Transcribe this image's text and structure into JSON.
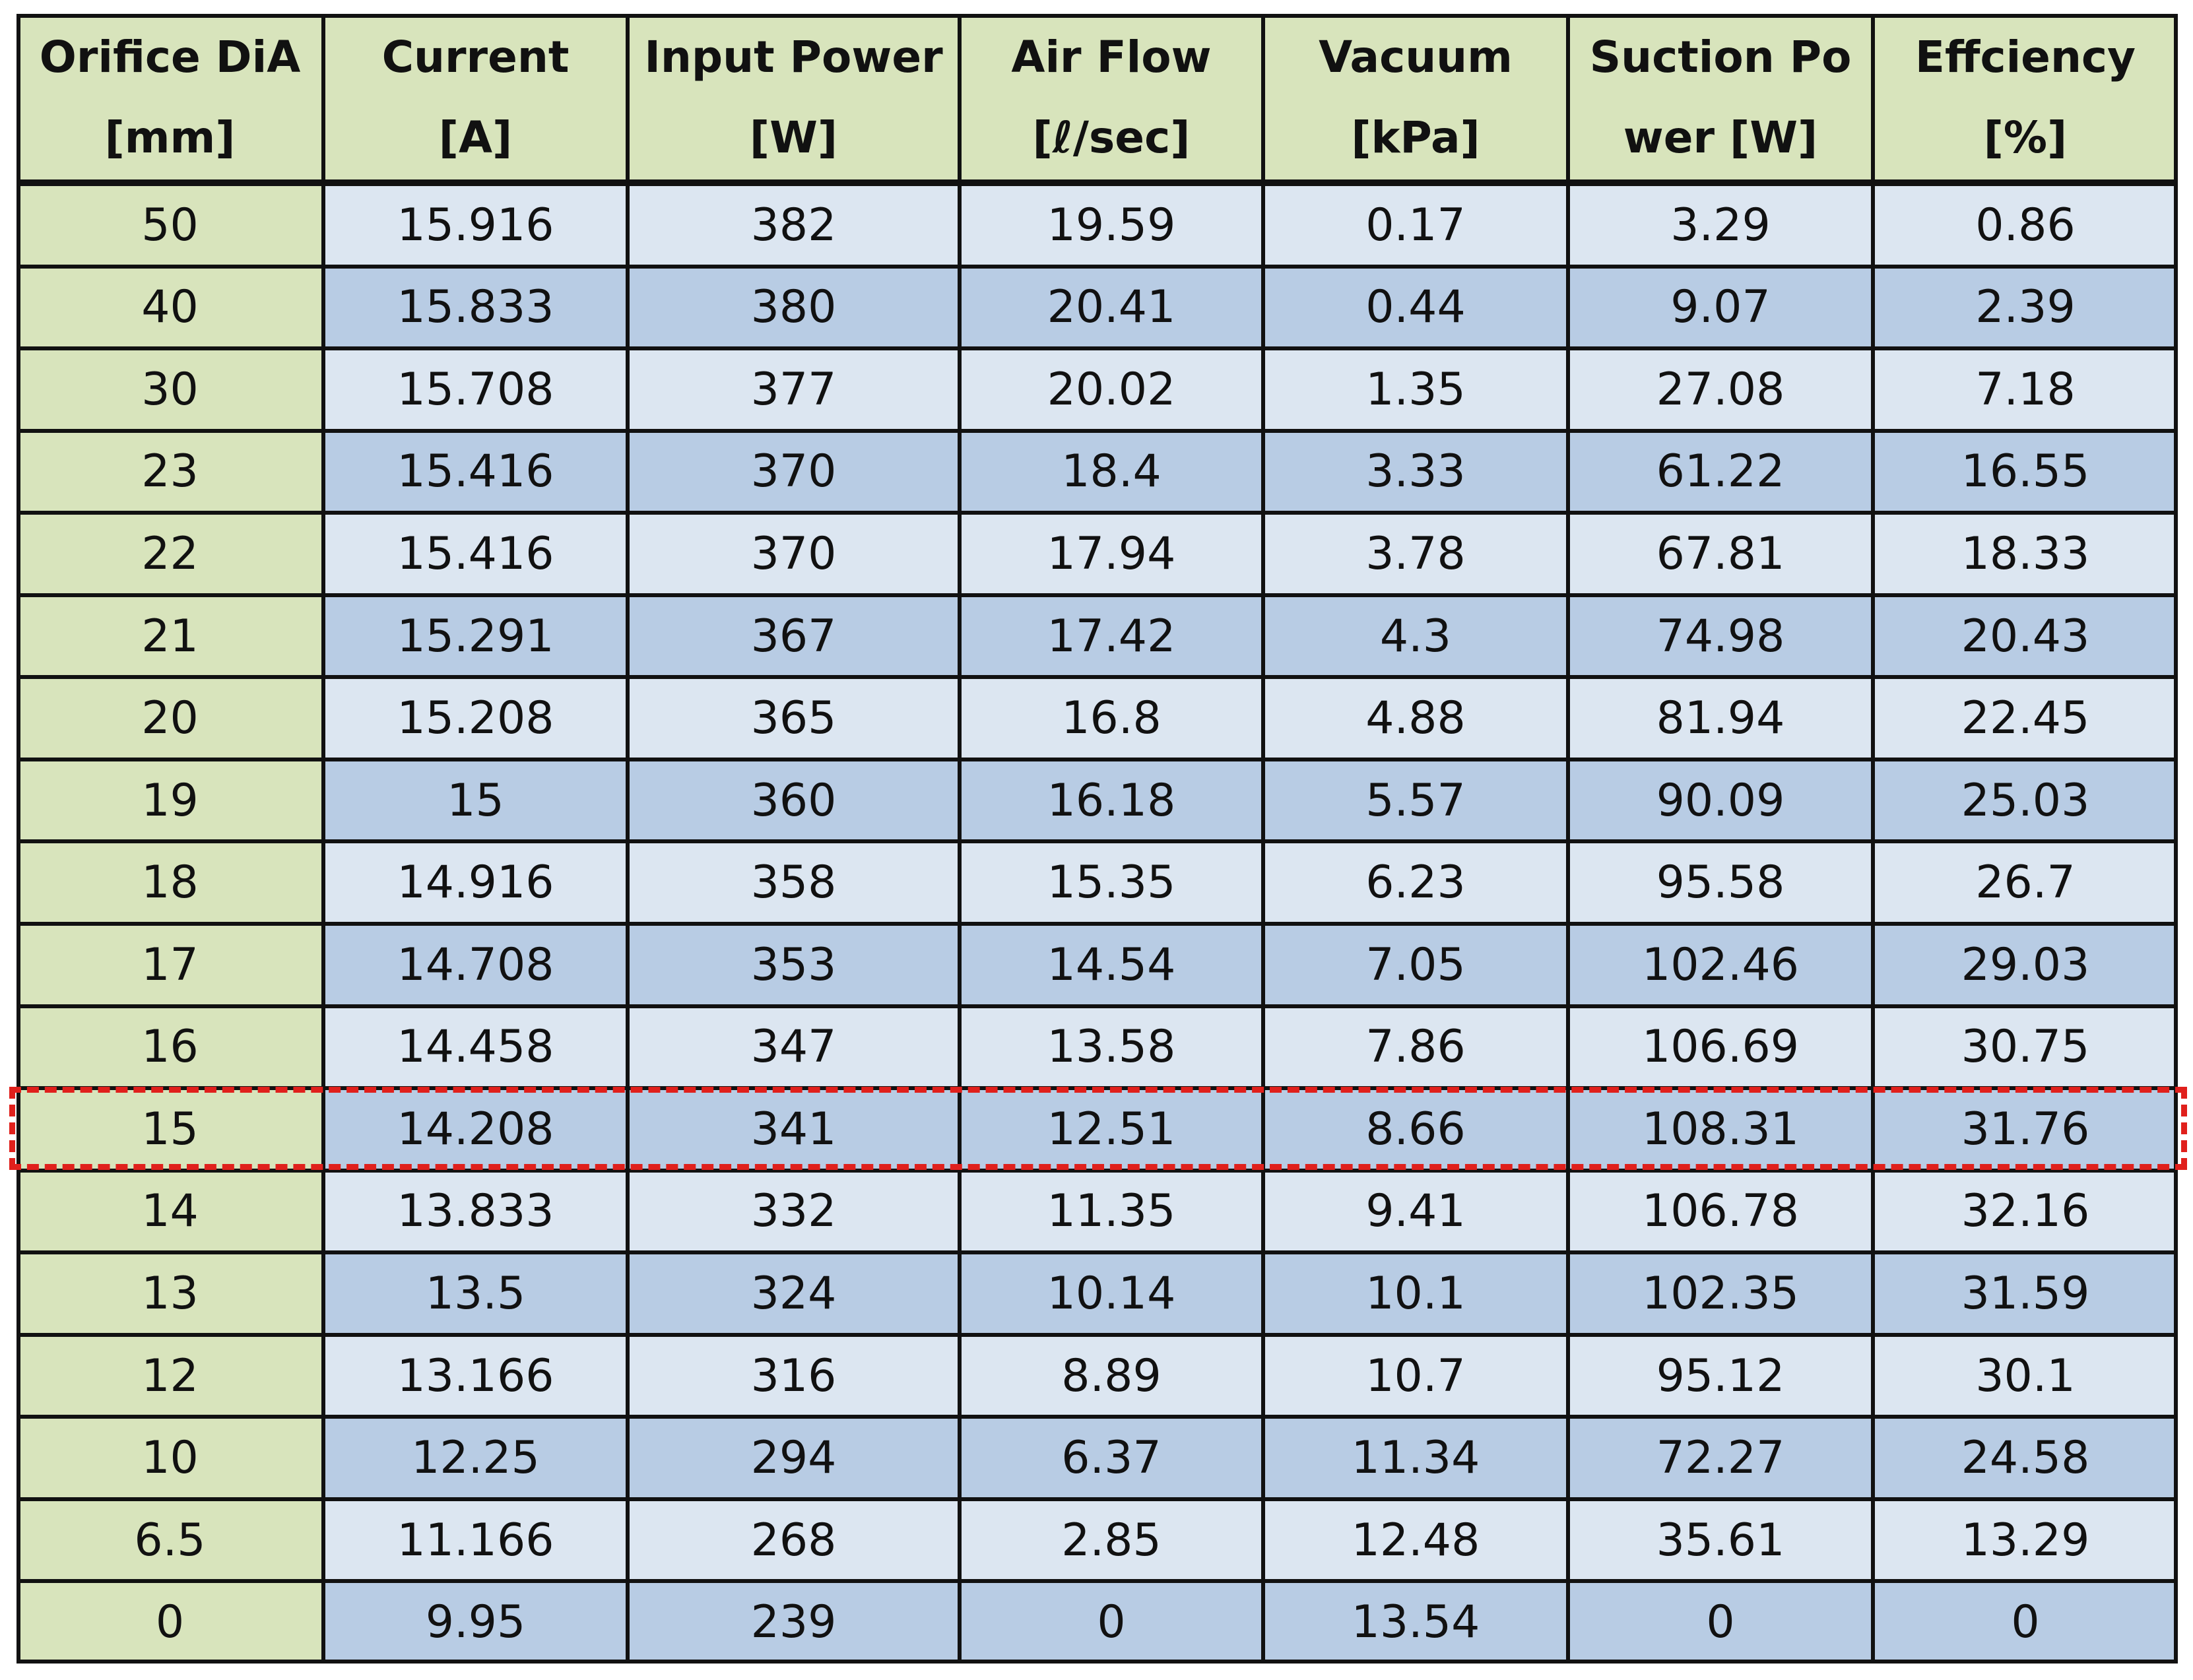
{
  "header": {
    "columns": [
      [
        "Orifice DiA",
        "[mm]"
      ],
      [
        "Current",
        "[A]"
      ],
      [
        "Input Power",
        "[W]"
      ],
      [
        "Air Flow",
        "[ℓ/sec]"
      ],
      [
        "Vacuum",
        "[kPa]"
      ],
      [
        "Suction Po",
        "wer [W]"
      ],
      [
        "Effciency",
        "[%]"
      ]
    ]
  },
  "table": {
    "rows": [
      [
        "50",
        "15.916",
        "382",
        "19.59",
        "0.17",
        "3.29",
        "0.86"
      ],
      [
        "40",
        "15.833",
        "380",
        "20.41",
        "0.44",
        "9.07",
        "2.39"
      ],
      [
        "30",
        "15.708",
        "377",
        "20.02",
        "1.35",
        "27.08",
        "7.18"
      ],
      [
        "23",
        "15.416",
        "370",
        "18.4",
        "3.33",
        "61.22",
        "16.55"
      ],
      [
        "22",
        "15.416",
        "370",
        "17.94",
        "3.78",
        "67.81",
        "18.33"
      ],
      [
        "21",
        "15.291",
        "367",
        "17.42",
        "4.3",
        "74.98",
        "20.43"
      ],
      [
        "20",
        "15.208",
        "365",
        "16.8",
        "4.88",
        "81.94",
        "22.45"
      ],
      [
        "19",
        "15",
        "360",
        "16.18",
        "5.57",
        "90.09",
        "25.03"
      ],
      [
        "18",
        "14.916",
        "358",
        "15.35",
        "6.23",
        "95.58",
        "26.7"
      ],
      [
        "17",
        "14.708",
        "353",
        "14.54",
        "7.05",
        "102.46",
        "29.03"
      ],
      [
        "16",
        "14.458",
        "347",
        "13.58",
        "7.86",
        "106.69",
        "30.75"
      ],
      [
        "15",
        "14.208",
        "341",
        "12.51",
        "8.66",
        "108.31",
        "31.76"
      ],
      [
        "14",
        "13.833",
        "332",
        "11.35",
        "9.41",
        "106.78",
        "32.16"
      ],
      [
        "13",
        "13.5",
        "324",
        "10.14",
        "10.1",
        "102.35",
        "31.59"
      ],
      [
        "12",
        "13.166",
        "316",
        "8.89",
        "10.7",
        "95.12",
        "30.1"
      ],
      [
        "10",
        "12.25",
        "294",
        "6.37",
        "11.34",
        "72.27",
        "24.58"
      ],
      [
        "6.5",
        "11.166",
        "268",
        "2.85",
        "12.48",
        "35.61",
        "13.29"
      ],
      [
        "0",
        "9.95",
        "239",
        "0",
        "13.54",
        "0",
        "0"
      ]
    ]
  }
}
